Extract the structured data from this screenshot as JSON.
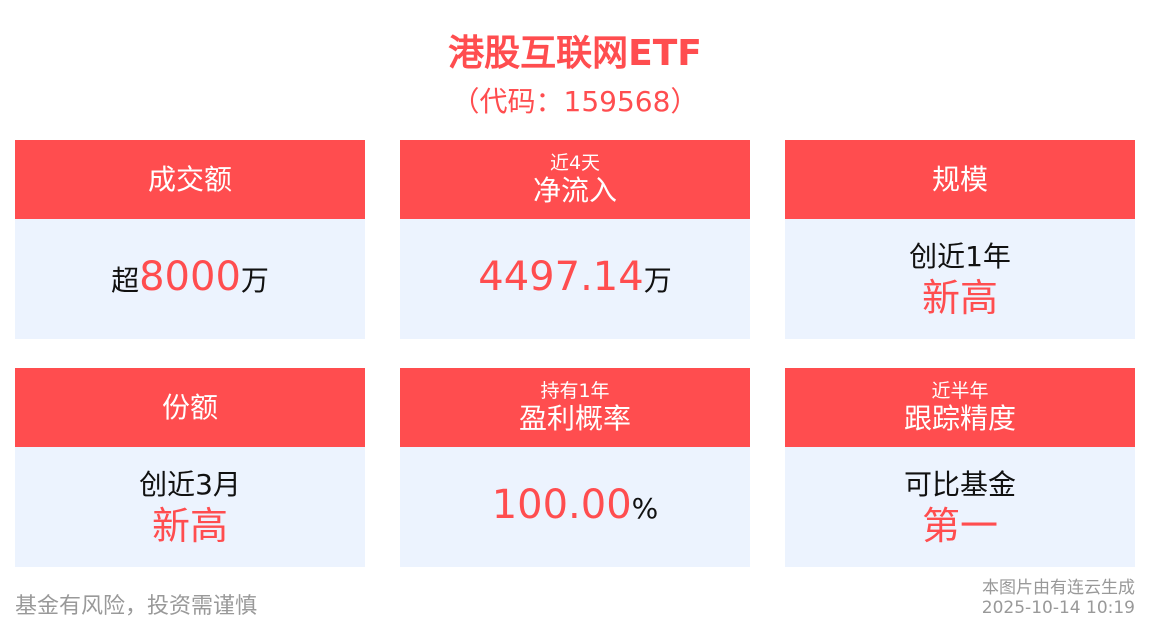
{
  "header": {
    "title": "港股互联网ETF",
    "code": "（代码：159568）"
  },
  "colors": {
    "accent": "#ff4d4f",
    "card_bg": "#ecf3fe"
  },
  "cards": [
    {
      "sub": "",
      "label": "成交额",
      "prefix": "超",
      "value": "8000",
      "suffix": "万"
    },
    {
      "sub": "近4天",
      "label": "净流入",
      "prefix": "",
      "value": "4497.14",
      "suffix": "万"
    },
    {
      "sub": "",
      "label": "规模",
      "line1": "创近1年",
      "line2": "新高"
    },
    {
      "sub": "",
      "label": "份额",
      "line1": "创近3月",
      "line2": "新高"
    },
    {
      "sub": "持有1年",
      "label": "盈利概率",
      "prefix": "",
      "value": "100.00",
      "suffix": "%"
    },
    {
      "sub": "近半年",
      "label": "跟踪精度",
      "line1": "可比基金",
      "line2": "第一"
    }
  ],
  "footer": {
    "disclaimer": "基金有风险，投资需谨慎",
    "source": "本图片由有连云生成",
    "timestamp": "2025-10-14 10:19"
  }
}
